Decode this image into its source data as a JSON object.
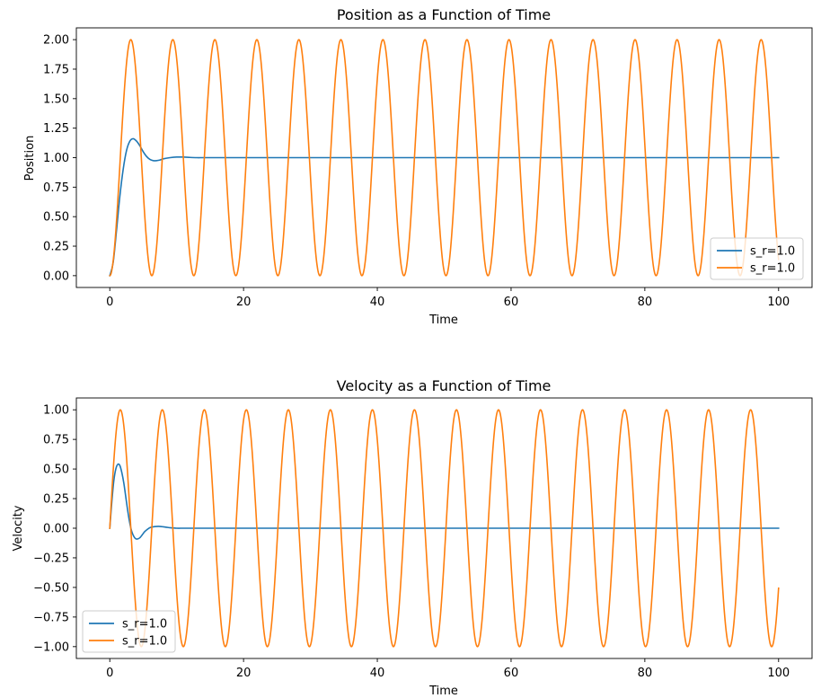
{
  "figure": {
    "background": "#ffffff",
    "series_colors": [
      "#1f77b4",
      "#ff7f0e"
    ]
  },
  "chart_data": [
    {
      "type": "line",
      "title": "Position as a Function of Time",
      "xlabel": "Time",
      "ylabel": "Position",
      "xlim": [
        -5,
        105
      ],
      "ylim": [
        -0.1,
        2.1
      ],
      "xticks": [
        0,
        20,
        40,
        60,
        80,
        100
      ],
      "xtick_labels": [
        "0",
        "20",
        "40",
        "60",
        "80",
        "100"
      ],
      "yticks": [
        0,
        0.25,
        0.5,
        0.75,
        1.0,
        1.25,
        1.5,
        1.75,
        2.0
      ],
      "ytick_labels": [
        "0.00",
        "0.25",
        "0.50",
        "0.75",
        "1.00",
        "1.25",
        "1.50",
        "1.75",
        "2.00"
      ],
      "grid": false,
      "legend": "lower-right",
      "series": [
        {
          "name": "s_r=1.0",
          "color": "#1f77b4",
          "x": [
            0,
            0.5,
            1.0,
            1.5,
            2.0,
            2.5,
            3.0,
            3.5,
            4.0,
            4.5,
            5.0,
            5.5,
            6.0,
            6.5,
            7.0,
            7.5,
            8.0,
            9.0,
            10.0,
            11.0,
            12.0,
            13.0,
            14.0,
            16.0,
            20.0,
            30.0,
            40.0,
            50.0,
            60.0,
            70.0,
            80.0,
            90.0,
            100.0
          ],
          "values": [
            0.0,
            0.11,
            0.38,
            0.67,
            0.9,
            1.06,
            1.14,
            1.16,
            1.14,
            1.1,
            1.05,
            1.01,
            0.985,
            0.975,
            0.975,
            0.98,
            0.99,
            1.0,
            1.005,
            1.005,
            1.002,
            1.0,
            1.0,
            1.0,
            1.0,
            1.0,
            1.0,
            1.0,
            1.0,
            1.0,
            1.0,
            1.0,
            1.0
          ]
        },
        {
          "name": "s_r=1.0",
          "color": "#ff7f0e",
          "function": "1 - cos(t)",
          "x_start": 0,
          "x_end": 100,
          "samples": 2000
        }
      ]
    },
    {
      "type": "line",
      "title": "Velocity as a Function of Time",
      "xlabel": "Time",
      "ylabel": "Velocity",
      "xlim": [
        -5,
        105
      ],
      "ylim": [
        -1.1,
        1.1
      ],
      "xticks": [
        0,
        20,
        40,
        60,
        80,
        100
      ],
      "xtick_labels": [
        "0",
        "20",
        "40",
        "60",
        "80",
        "100"
      ],
      "yticks": [
        -1.0,
        -0.75,
        -0.5,
        -0.25,
        0,
        0.25,
        0.5,
        0.75,
        1.0
      ],
      "ytick_labels": [
        "−1.00",
        "−0.75",
        "−0.50",
        "−0.25",
        "0.00",
        "0.25",
        "0.50",
        "0.75",
        "1.00"
      ],
      "grid": false,
      "legend": "lower-left",
      "series": [
        {
          "name": "s_r=1.0",
          "color": "#1f77b4",
          "x": [
            0,
            0.3,
            0.6,
            0.9,
            1.2,
            1.5,
            1.8,
            2.1,
            2.4,
            2.7,
            3.0,
            3.3,
            3.6,
            3.9,
            4.2,
            4.5,
            4.8,
            5.2,
            5.6,
            6.0,
            6.5,
            7.0,
            7.5,
            8.0,
            8.5,
            9.0,
            9.5,
            10.0,
            11.0,
            12.0,
            14.0,
            20.0,
            40.0,
            60.0,
            80.0,
            100.0
          ],
          "values": [
            0.0,
            0.22,
            0.4,
            0.5,
            0.54,
            0.53,
            0.47,
            0.38,
            0.26,
            0.14,
            0.04,
            -0.03,
            -0.07,
            -0.09,
            -0.09,
            -0.08,
            -0.06,
            -0.03,
            -0.01,
            0.005,
            0.012,
            0.015,
            0.015,
            0.012,
            0.008,
            0.004,
            0.002,
            0.0,
            0.0,
            0.0,
            0.0,
            0.0,
            0.0,
            0.0,
            0.0,
            0.0
          ]
        },
        {
          "name": "s_r=1.0",
          "color": "#ff7f0e",
          "function": "sin(t)",
          "x_start": 0,
          "x_end": 100,
          "samples": 2000
        }
      ]
    }
  ]
}
